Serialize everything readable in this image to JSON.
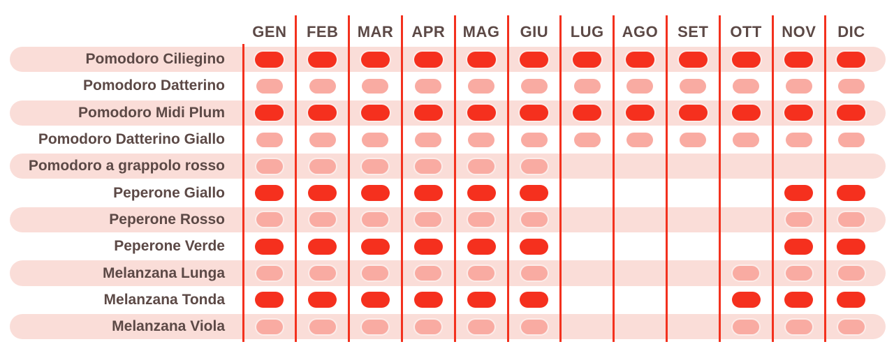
{
  "chart_data": {
    "type": "heatmap",
    "title": "",
    "columns": [
      "GEN",
      "FEB",
      "MAR",
      "APR",
      "MAG",
      "GIU",
      "LUG",
      "AGO",
      "SET",
      "OTT",
      "NOV",
      "DIC"
    ],
    "rows": [
      {
        "label": "Pomodoro Ciliegino",
        "values": [
          2,
          2,
          2,
          2,
          2,
          2,
          2,
          2,
          2,
          2,
          2,
          2
        ]
      },
      {
        "label": "Pomodoro Datterino",
        "values": [
          1,
          1,
          1,
          1,
          1,
          1,
          1,
          1,
          1,
          1,
          1,
          1
        ]
      },
      {
        "label": "Pomodoro Midi Plum",
        "values": [
          2,
          2,
          2,
          2,
          2,
          2,
          2,
          2,
          2,
          2,
          2,
          2
        ]
      },
      {
        "label": "Pomodoro Datterino Giallo",
        "values": [
          1,
          1,
          1,
          1,
          1,
          1,
          1,
          1,
          1,
          1,
          1,
          1
        ]
      },
      {
        "label": "Pomodoro a grappolo rosso",
        "values": [
          1,
          1,
          1,
          1,
          1,
          1,
          0,
          0,
          0,
          0,
          0,
          0
        ]
      },
      {
        "label": "Peperone Giallo",
        "values": [
          2,
          2,
          2,
          2,
          2,
          2,
          0,
          0,
          0,
          0,
          2,
          2
        ]
      },
      {
        "label": "Peperone Rosso",
        "values": [
          1,
          1,
          1,
          1,
          1,
          1,
          0,
          0,
          0,
          0,
          1,
          1
        ]
      },
      {
        "label": "Peperone Verde",
        "values": [
          2,
          2,
          2,
          2,
          2,
          2,
          0,
          0,
          0,
          0,
          2,
          2
        ]
      },
      {
        "label": "Melanzana Lunga",
        "values": [
          1,
          1,
          1,
          1,
          1,
          1,
          0,
          0,
          0,
          1,
          1,
          1
        ]
      },
      {
        "label": "Melanzana Tonda",
        "values": [
          2,
          2,
          2,
          2,
          2,
          2,
          0,
          0,
          0,
          2,
          2,
          2
        ]
      },
      {
        "label": "Melanzana Viola",
        "values": [
          1,
          1,
          1,
          1,
          1,
          1,
          0,
          0,
          0,
          1,
          1,
          1
        ]
      }
    ],
    "value_scale": {
      "0": "not available",
      "1": "partial availability (light pill)",
      "2": "full availability (bright pill)"
    },
    "legend_position": "none",
    "grid": "red vertical month dividers, alternating pink row bands"
  },
  "colors": {
    "full_red": "#F5301E",
    "partial_pink": "#F9ABA2",
    "row_band_pink": "#FADDD8",
    "divider_red": "#F3311E",
    "text_brown": "#5C4946",
    "background": "#FFFFFF"
  }
}
